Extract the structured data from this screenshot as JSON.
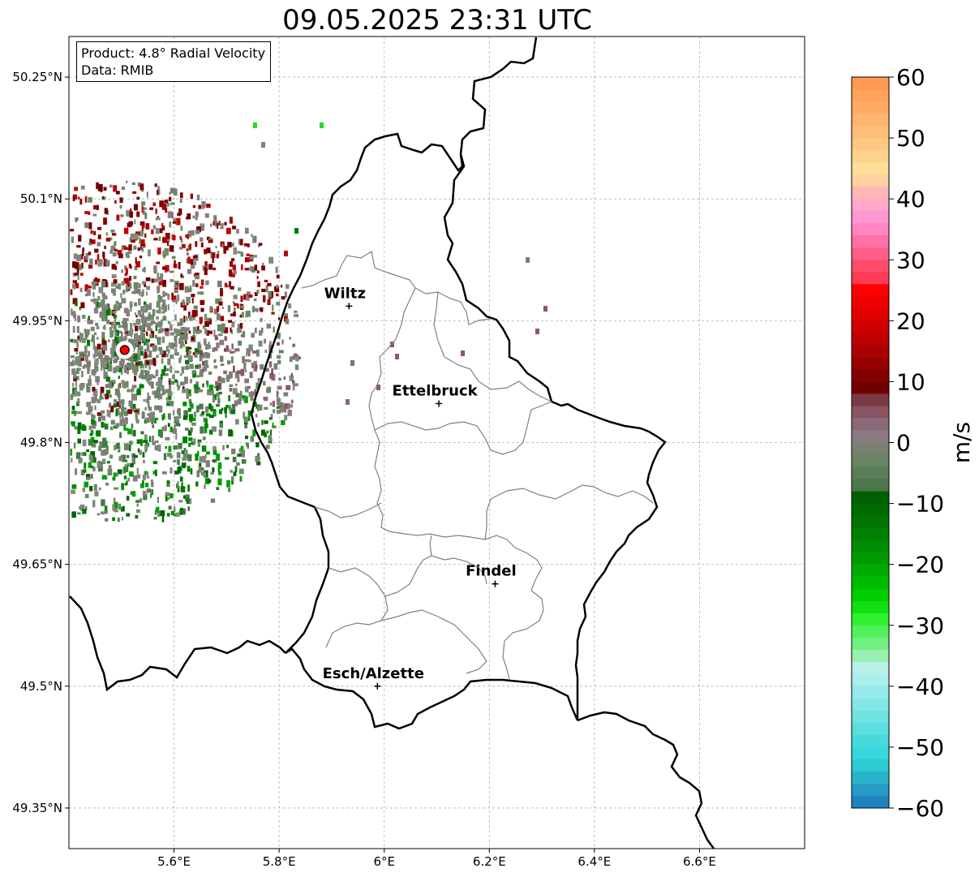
{
  "title": "09.05.2025 23:31 UTC",
  "info": {
    "product_line": "Product: 4.8° Radial Velocity",
    "data_line": "Data: RMIB"
  },
  "map": {
    "lon_range": [
      5.4,
      6.8
    ],
    "lat_range": [
      49.3,
      50.3
    ],
    "lon_ticks": [
      {
        "value": 5.6,
        "label": "5.6°E"
      },
      {
        "value": 5.8,
        "label": "5.8°E"
      },
      {
        "value": 6.0,
        "label": "6°E"
      },
      {
        "value": 6.2,
        "label": "6.2°E"
      },
      {
        "value": 6.4,
        "label": "6.4°E"
      },
      {
        "value": 6.6,
        "label": "6.6°E"
      }
    ],
    "lat_ticks": [
      {
        "value": 50.25,
        "label": "50.25°N"
      },
      {
        "value": 50.1,
        "label": "50.1°N"
      },
      {
        "value": 49.95,
        "label": "49.95°N"
      },
      {
        "value": 49.8,
        "label": "49.8°N"
      },
      {
        "value": 49.65,
        "label": "49.65°N"
      },
      {
        "value": 49.5,
        "label": "49.5°N"
      },
      {
        "value": 49.35,
        "label": "49.35°N"
      }
    ],
    "gridlines": true,
    "radar_site": {
      "lon": 5.506,
      "lat": 49.914,
      "color": "#ff0000"
    },
    "cities": [
      {
        "name": "Wiltz",
        "lon": 5.933,
        "lat": 49.968
      },
      {
        "name": "Ettelbruck",
        "lon": 6.104,
        "lat": 49.848
      },
      {
        "name": "Findel",
        "lon": 6.211,
        "lat": 49.626
      },
      {
        "name": "Esch/Alzette",
        "lon": 5.987,
        "lat": 49.5
      }
    ]
  },
  "colorbar": {
    "label": "m/s",
    "range": [
      -60,
      60
    ],
    "ticks": [
      {
        "value": 60,
        "label": "60"
      },
      {
        "value": 50,
        "label": "50"
      },
      {
        "value": 40,
        "label": "40"
      },
      {
        "value": 30,
        "label": "30"
      },
      {
        "value": 20,
        "label": "20"
      },
      {
        "value": 10,
        "label": "10"
      },
      {
        "value": 0,
        "label": "0"
      },
      {
        "value": -10,
        "label": "−10"
      },
      {
        "value": -20,
        "label": "−20"
      },
      {
        "value": -30,
        "label": "−30"
      },
      {
        "value": -40,
        "label": "−40"
      },
      {
        "value": -50,
        "label": "−50"
      },
      {
        "value": -60,
        "label": "−60"
      }
    ],
    "bands": [
      {
        "from": 58,
        "to": 60,
        "color": "#ff9a52"
      },
      {
        "from": 56,
        "to": 58,
        "color": "#ffa25c"
      },
      {
        "from": 54,
        "to": 56,
        "color": "#ffaa66"
      },
      {
        "from": 52,
        "to": 54,
        "color": "#ffb470"
      },
      {
        "from": 50,
        "to": 52,
        "color": "#ffbe78"
      },
      {
        "from": 48,
        "to": 50,
        "color": "#ffc882"
      },
      {
        "from": 46,
        "to": 48,
        "color": "#ffd28e"
      },
      {
        "from": 44,
        "to": 46,
        "color": "#ffde98"
      },
      {
        "from": 42,
        "to": 44,
        "color": "#ffd0a0"
      },
      {
        "from": 40,
        "to": 42,
        "color": "#ffb6b6"
      },
      {
        "from": 38,
        "to": 40,
        "color": "#ffa8c8"
      },
      {
        "from": 36,
        "to": 38,
        "color": "#ff98d0"
      },
      {
        "from": 34,
        "to": 36,
        "color": "#ff86c2"
      },
      {
        "from": 32,
        "to": 34,
        "color": "#ff70a4"
      },
      {
        "from": 30,
        "to": 32,
        "color": "#ff5e88"
      },
      {
        "from": 28,
        "to": 30,
        "color": "#ff4a6a"
      },
      {
        "from": 26,
        "to": 28,
        "color": "#ff3a54"
      },
      {
        "from": 24,
        "to": 26,
        "color": "#ff0000"
      },
      {
        "from": 22,
        "to": 24,
        "color": "#f00000"
      },
      {
        "from": 20,
        "to": 22,
        "color": "#e00000"
      },
      {
        "from": 18,
        "to": 20,
        "color": "#d00000"
      },
      {
        "from": 16,
        "to": 18,
        "color": "#be0000"
      },
      {
        "from": 14,
        "to": 16,
        "color": "#aa0000"
      },
      {
        "from": 12,
        "to": 14,
        "color": "#960000"
      },
      {
        "from": 10,
        "to": 12,
        "color": "#820000"
      },
      {
        "from": 8,
        "to": 10,
        "color": "#6e0000"
      },
      {
        "from": 6,
        "to": 8,
        "color": "#7a3a44"
      },
      {
        "from": 4,
        "to": 6,
        "color": "#8a5462"
      },
      {
        "from": 2,
        "to": 4,
        "color": "#8a6a78"
      },
      {
        "from": 0,
        "to": 2,
        "color": "#8a7a82"
      },
      {
        "from": -2,
        "to": 0,
        "color": "#7a8072"
      },
      {
        "from": -4,
        "to": -2,
        "color": "#6a8466"
      },
      {
        "from": -6,
        "to": -4,
        "color": "#5a7e58"
      },
      {
        "from": -8,
        "to": -6,
        "color": "#4a784a"
      },
      {
        "from": -10,
        "to": -8,
        "color": "#005f00"
      },
      {
        "from": -12,
        "to": -10,
        "color": "#006a00"
      },
      {
        "from": -14,
        "to": -12,
        "color": "#007400"
      },
      {
        "from": -16,
        "to": -14,
        "color": "#008000"
      },
      {
        "from": -18,
        "to": -16,
        "color": "#008c00"
      },
      {
        "from": -20,
        "to": -18,
        "color": "#009a00"
      },
      {
        "from": -22,
        "to": -20,
        "color": "#00aa00"
      },
      {
        "from": -24,
        "to": -22,
        "color": "#00ba00"
      },
      {
        "from": -26,
        "to": -24,
        "color": "#00cc00"
      },
      {
        "from": -28,
        "to": -26,
        "color": "#10e010"
      },
      {
        "from": -30,
        "to": -28,
        "color": "#30f030"
      },
      {
        "from": -32,
        "to": -30,
        "color": "#50f058"
      },
      {
        "from": -34,
        "to": -32,
        "color": "#70f080"
      },
      {
        "from": -36,
        "to": -34,
        "color": "#98f0b0"
      },
      {
        "from": -38,
        "to": -36,
        "color": "#b8f0e8"
      },
      {
        "from": -40,
        "to": -38,
        "color": "#aaeeee"
      },
      {
        "from": -42,
        "to": -40,
        "color": "#96eaea"
      },
      {
        "from": -44,
        "to": -42,
        "color": "#84e6e6"
      },
      {
        "from": -46,
        "to": -44,
        "color": "#70e2e2"
      },
      {
        "from": -48,
        "to": -46,
        "color": "#5cdede"
      },
      {
        "from": -50,
        "to": -48,
        "color": "#48dada"
      },
      {
        "from": -52,
        "to": -50,
        "color": "#36d8dc"
      },
      {
        "from": -54,
        "to": -52,
        "color": "#2ccad2"
      },
      {
        "from": -56,
        "to": -54,
        "color": "#28b4cc"
      },
      {
        "from": -58,
        "to": -56,
        "color": "#249cc6"
      },
      {
        "from": -60,
        "to": -58,
        "color": "#1f83c0"
      }
    ]
  }
}
